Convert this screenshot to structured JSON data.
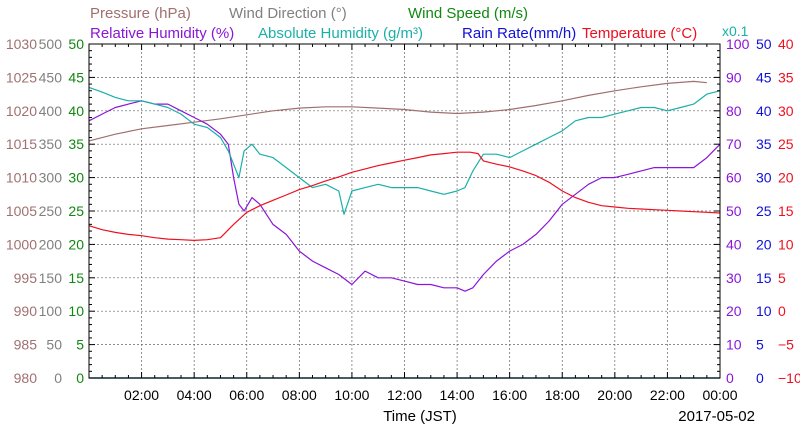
{
  "chart_data": {
    "type": "line",
    "legend": {
      "row1": [
        {
          "key": "pressure",
          "text": "Pressure (hPa)",
          "color": "#a07070"
        },
        {
          "key": "wind_dir",
          "text": "Wind Direction (°)",
          "color": "#808080"
        },
        {
          "key": "wind_speed",
          "text": "Wind Speed (m/s)",
          "color": "#118811"
        }
      ],
      "row2": [
        {
          "key": "rh",
          "text": "Relative Humidity (%)",
          "color": "#8a16d8"
        },
        {
          "key": "ah",
          "text": "Absolute Humidity (g/m³)",
          "color": "#1ab0a8"
        },
        {
          "key": "rain",
          "text": "Rain Rate(mm/h)",
          "color": "#1010d8"
        },
        {
          "key": "temp",
          "text": "Temperature (°C)",
          "color": "#ee1020"
        }
      ],
      "multiplier": "x0.1"
    },
    "xlabel": "Time (JST)",
    "date": "2017-05-02",
    "xlim": [
      0,
      24
    ],
    "x_ticks": [
      "02:00",
      "04:00",
      "06:00",
      "08:00",
      "10:00",
      "12:00",
      "14:00",
      "16:00",
      "18:00",
      "20:00",
      "22:00",
      "00:00"
    ],
    "axes": {
      "pressure": {
        "min": 980,
        "max": 1030,
        "color": "#a07070",
        "labels": [
          "980",
          "985",
          "990",
          "995",
          "1000",
          "1005",
          "1010",
          "1015",
          "1020",
          "1025",
          "1030"
        ]
      },
      "wind_dir": {
        "min": 0,
        "max": 500,
        "color": "#808080",
        "labels": [
          "0",
          "50",
          "100",
          "150",
          "200",
          "250",
          "300",
          "350",
          "400",
          "450",
          "500"
        ]
      },
      "wind_speed": {
        "min": 0,
        "max": 50,
        "color": "#118811",
        "labels": [
          "0",
          "5",
          "10",
          "15",
          "20",
          "25",
          "30",
          "35",
          "40",
          "45",
          "50"
        ]
      },
      "rh": {
        "min": 0,
        "max": 100,
        "color": "#8a16d8",
        "labels": [
          "0",
          "10",
          "20",
          "30",
          "40",
          "50",
          "60",
          "70",
          "80",
          "90",
          "100"
        ]
      },
      "ah_rain": {
        "min": 0,
        "max": 50,
        "color": "#1010d8",
        "labels": [
          "0",
          "5",
          "10",
          "15",
          "20",
          "25",
          "30",
          "35",
          "40",
          "45",
          "50"
        ]
      },
      "temp": {
        "min": -10,
        "max": 40,
        "color": "#ee1020",
        "labels": [
          "−10",
          "−5",
          "0",
          "5",
          "10",
          "15",
          "20",
          "25",
          "30",
          "35",
          "40"
        ]
      }
    },
    "series": [
      {
        "name": "Pressure (hPa)",
        "axis": "pressure",
        "color": "#a07070",
        "x": [
          0,
          1,
          2,
          3,
          4,
          5,
          6,
          7,
          8,
          9,
          10,
          11,
          12,
          13,
          14,
          15,
          16,
          17,
          18,
          19,
          20,
          21,
          22,
          23,
          23.5
        ],
        "y": [
          1015.5,
          1016.5,
          1017.3,
          1017.8,
          1018.3,
          1018.8,
          1019.4,
          1020.0,
          1020.4,
          1020.6,
          1020.6,
          1020.4,
          1020.2,
          1019.8,
          1019.6,
          1019.8,
          1020.2,
          1020.8,
          1021.5,
          1022.3,
          1023.0,
          1023.6,
          1024.1,
          1024.4,
          1024.2
        ]
      },
      {
        "name": "Relative Humidity (%)",
        "axis": "rh",
        "color": "#8a16d8",
        "x": [
          0,
          0.5,
          1,
          1.5,
          2,
          2.5,
          3,
          3.5,
          4,
          4.5,
          5,
          5.3,
          5.5,
          5.7,
          5.9,
          6.2,
          6.5,
          7,
          7.5,
          8,
          8.5,
          9,
          9.5,
          10,
          10.5,
          11,
          11.5,
          12,
          12.5,
          13,
          13.5,
          14,
          14.3,
          14.6,
          15,
          15.5,
          16,
          16.5,
          17,
          17.5,
          18,
          18.5,
          19,
          19.5,
          20,
          20.5,
          21,
          21.5,
          22,
          22.5,
          23,
          23.5,
          24
        ],
        "y": [
          77,
          79,
          81,
          82,
          83,
          82,
          82,
          80,
          78,
          76,
          73,
          70,
          60,
          52,
          50,
          54,
          52,
          46,
          43,
          38,
          35,
          33,
          31,
          28,
          32,
          30,
          30,
          29,
          28,
          28,
          27,
          27,
          26,
          27,
          31,
          35,
          38,
          40,
          43,
          47,
          52,
          55,
          58,
          60,
          60,
          61,
          62,
          63,
          63,
          63,
          63,
          66,
          70
        ]
      },
      {
        "name": "Absolute Humidity (g/m³)",
        "axis": "ah_rain",
        "color": "#1ab0a8",
        "x": [
          0,
          0.5,
          1,
          1.5,
          2,
          2.5,
          3,
          3.5,
          4,
          4.5,
          5,
          5.3,
          5.5,
          5.7,
          5.9,
          6.2,
          6.5,
          7,
          7.5,
          8,
          8.5,
          9,
          9.5,
          9.7,
          10,
          10.5,
          11,
          11.5,
          12,
          12.5,
          13,
          13.5,
          14,
          14.3,
          14.6,
          15,
          15.5,
          16,
          16.5,
          17,
          17.5,
          18,
          18.5,
          19,
          19.5,
          20,
          20.5,
          21,
          21.5,
          22,
          22.5,
          23,
          23.5,
          24
        ],
        "y": [
          43.5,
          42.8,
          42,
          41.5,
          41.5,
          41,
          40.5,
          39.5,
          38,
          37.5,
          36,
          34,
          32,
          30,
          34,
          35,
          33.5,
          33,
          31.5,
          30,
          28.5,
          29,
          28,
          24.5,
          28,
          28.5,
          29,
          28.5,
          28.5,
          28.5,
          28,
          27.5,
          28,
          28.5,
          31,
          33.5,
          33.5,
          33,
          34,
          35,
          36,
          37,
          38.5,
          39,
          39,
          39.5,
          40,
          40.5,
          40.5,
          40,
          40.5,
          41,
          42.5,
          43
        ]
      },
      {
        "name": "Rain Rate(mm/h)",
        "axis": "ah_rain",
        "color": "#1010d8",
        "x": [
          0,
          24
        ],
        "y": [
          0,
          0
        ]
      },
      {
        "name": "Temperature (°C)",
        "axis": "temp",
        "color": "#ee1020",
        "x": [
          0,
          0.5,
          1,
          1.5,
          2,
          2.5,
          3,
          3.5,
          4,
          4.5,
          5,
          5.5,
          6,
          6.5,
          7,
          7.5,
          8,
          8.5,
          9,
          9.5,
          10,
          10.5,
          11,
          11.5,
          12,
          12.5,
          13,
          13.5,
          14,
          14.5,
          14.8,
          15,
          15.5,
          16,
          16.5,
          17,
          17.5,
          18,
          18.5,
          19,
          19.5,
          20,
          20.5,
          21,
          21.5,
          22,
          22.5,
          23,
          23.5,
          24
        ],
        "y": [
          12.8,
          12.2,
          11.8,
          11.5,
          11.3,
          11.0,
          10.8,
          10.7,
          10.6,
          10.7,
          11.0,
          13.0,
          14.8,
          15.8,
          16.6,
          17.4,
          18.2,
          18.8,
          19.5,
          20.1,
          20.8,
          21.3,
          21.8,
          22.2,
          22.6,
          23.0,
          23.4,
          23.6,
          23.8,
          23.8,
          23.6,
          22.5,
          22.0,
          21.6,
          21.0,
          20.3,
          19.3,
          18.0,
          17.0,
          16.3,
          15.8,
          15.6,
          15.4,
          15.3,
          15.2,
          15.1,
          15.0,
          14.9,
          14.8,
          14.7
        ]
      },
      {
        "name": "Wind Speed (m/s)",
        "axis": "wind_speed",
        "color": "#118811",
        "x": [
          0,
          24
        ],
        "y": [
          0,
          0
        ]
      }
    ],
    "grid": true
  }
}
